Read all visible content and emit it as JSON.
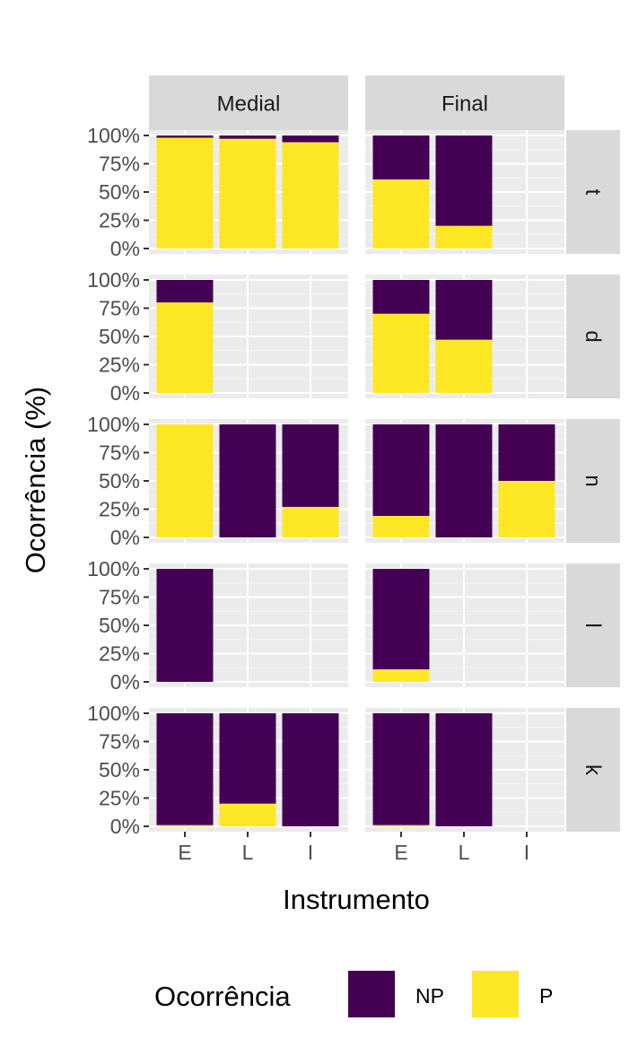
{
  "chart_data": {
    "type": "bar",
    "stacked": true,
    "xlabel": "Instrumento",
    "ylabel": "Ocorrência (%)",
    "ylim": [
      0,
      100
    ],
    "y_ticks": [
      "0%",
      "25%",
      "50%",
      "75%",
      "100%"
    ],
    "categories": [
      "E",
      "L",
      "I"
    ],
    "columns": [
      "Medial",
      "Final"
    ],
    "rows": [
      "t",
      "d",
      "n",
      "l",
      "k"
    ],
    "legend": {
      "title": "Ocorrência",
      "position": "bottom",
      "entries": [
        {
          "name": "NP",
          "color": "#440154"
        },
        {
          "name": "P",
          "color": "#FDE725"
        }
      ]
    },
    "panels": [
      {
        "row": "t",
        "column": "Medial",
        "bars": [
          {
            "x": "E",
            "P": 98
          },
          {
            "x": "L",
            "P": 97
          },
          {
            "x": "I",
            "P": 94
          }
        ]
      },
      {
        "row": "t",
        "column": "Final",
        "bars": [
          {
            "x": "E",
            "P": 61
          },
          {
            "x": "L",
            "P": 20
          }
        ]
      },
      {
        "row": "d",
        "column": "Medial",
        "bars": [
          {
            "x": "E",
            "P": 80
          }
        ]
      },
      {
        "row": "d",
        "column": "Final",
        "bars": [
          {
            "x": "E",
            "P": 70
          },
          {
            "x": "L",
            "P": 47
          }
        ]
      },
      {
        "row": "n",
        "column": "Medial",
        "bars": [
          {
            "x": "E",
            "P": 100
          },
          {
            "x": "L",
            "P": 0
          },
          {
            "x": "I",
            "P": 27
          }
        ]
      },
      {
        "row": "n",
        "column": "Final",
        "bars": [
          {
            "x": "E",
            "P": 19
          },
          {
            "x": "L",
            "P": 0
          },
          {
            "x": "I",
            "P": 50
          }
        ]
      },
      {
        "row": "l",
        "column": "Medial",
        "bars": [
          {
            "x": "E",
            "P": 0
          }
        ]
      },
      {
        "row": "l",
        "column": "Final",
        "bars": [
          {
            "x": "E",
            "P": 11
          }
        ]
      },
      {
        "row": "k",
        "column": "Medial",
        "bars": [
          {
            "x": "E",
            "P": 1
          },
          {
            "x": "L",
            "P": 20
          },
          {
            "x": "I",
            "P": 0
          }
        ]
      },
      {
        "row": "k",
        "column": "Final",
        "bars": [
          {
            "x": "E",
            "P": 1
          },
          {
            "x": "L",
            "P": 0
          }
        ]
      }
    ]
  }
}
